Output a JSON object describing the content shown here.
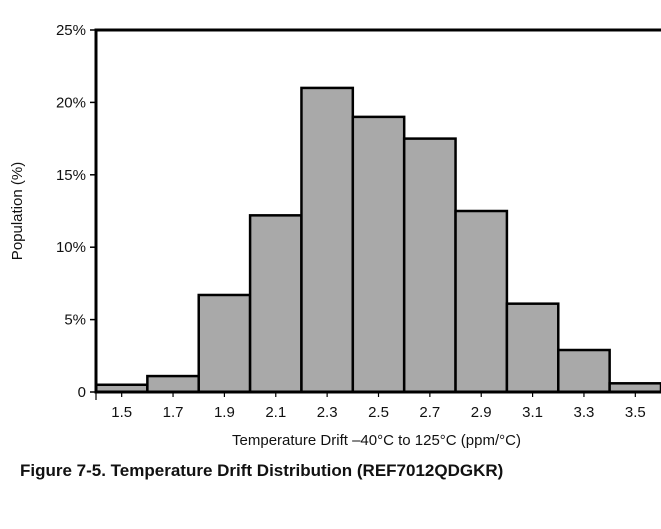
{
  "caption": "Figure 7-5. Temperature Drift Distribution (REF7012QDGKR)",
  "chart_data": {
    "type": "bar",
    "title": "",
    "xlabel": "Temperature Drift –40°C to 125°C (ppm/°C)",
    "ylabel": "Population (%)",
    "ylim": [
      0,
      25
    ],
    "yticks": [
      0,
      5,
      10,
      15,
      20,
      25
    ],
    "ytick_labels": [
      "0",
      "5%",
      "10%",
      "15%",
      "20%",
      "25%"
    ],
    "xlim": [
      1.4,
      3.6
    ],
    "xticks": [
      1.5,
      1.7,
      1.9,
      2.1,
      2.3,
      2.5,
      2.7,
      2.9,
      3.1,
      3.3,
      3.5
    ],
    "xtick_labels": [
      "1.5",
      "1.7",
      "1.9",
      "2.1",
      "2.3",
      "2.5",
      "2.7",
      "2.9",
      "3.1",
      "3.3",
      "3.5"
    ],
    "bins": [
      [
        1.4,
        1.6
      ],
      [
        1.6,
        1.8
      ],
      [
        1.8,
        2.0
      ],
      [
        2.0,
        2.2
      ],
      [
        2.2,
        2.4
      ],
      [
        2.4,
        2.6
      ],
      [
        2.6,
        2.8
      ],
      [
        2.8,
        3.0
      ],
      [
        3.0,
        3.2
      ],
      [
        3.2,
        3.4
      ],
      [
        3.4,
        3.6
      ]
    ],
    "values": [
      0.5,
      1.1,
      6.7,
      12.2,
      21.0,
      19.0,
      17.5,
      12.5,
      6.1,
      2.9,
      0.6
    ],
    "bar_color": "#a9a9a9",
    "edge_color": "#000000",
    "grid": false
  }
}
